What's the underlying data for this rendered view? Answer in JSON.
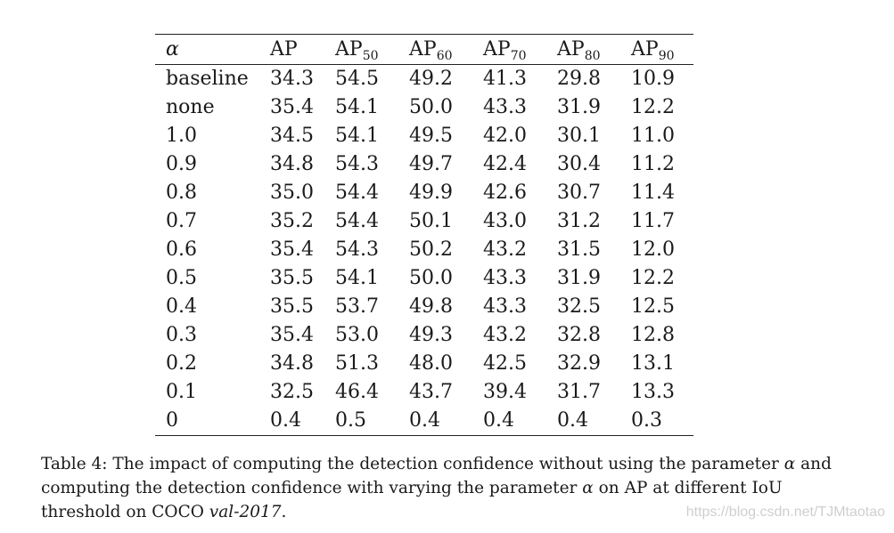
{
  "table": {
    "header": {
      "alpha": "α",
      "ap": "AP",
      "ap_base": "AP",
      "ap50_sub": "50",
      "ap60_sub": "60",
      "ap70_sub": "70",
      "ap80_sub": "80",
      "ap90_sub": "90"
    },
    "rows": [
      {
        "label": "baseline",
        "ap": "34.3",
        "ap50": "54.5",
        "ap60": "49.2",
        "ap70": "41.3",
        "ap80": "29.8",
        "ap90": "10.9"
      },
      {
        "label": "none",
        "ap": "35.4",
        "ap50": "54.1",
        "ap60": "50.0",
        "ap70": "43.3",
        "ap80": "31.9",
        "ap90": "12.2"
      },
      {
        "label": "1.0",
        "ap": "34.5",
        "ap50": "54.1",
        "ap60": "49.5",
        "ap70": "42.0",
        "ap80": "30.1",
        "ap90": "11.0"
      },
      {
        "label": "0.9",
        "ap": "34.8",
        "ap50": "54.3",
        "ap60": "49.7",
        "ap70": "42.4",
        "ap80": "30.4",
        "ap90": "11.2"
      },
      {
        "label": "0.8",
        "ap": "35.0",
        "ap50": "54.4",
        "ap60": "49.9",
        "ap70": "42.6",
        "ap80": "30.7",
        "ap90": "11.4"
      },
      {
        "label": "0.7",
        "ap": "35.2",
        "ap50": "54.4",
        "ap60": "50.1",
        "ap70": "43.0",
        "ap80": "31.2",
        "ap90": "11.7"
      },
      {
        "label": "0.6",
        "ap": "35.4",
        "ap50": "54.3",
        "ap60": "50.2",
        "ap70": "43.2",
        "ap80": "31.5",
        "ap90": "12.0"
      },
      {
        "label": "0.5",
        "ap": "35.5",
        "ap50": "54.1",
        "ap60": "50.0",
        "ap70": "43.3",
        "ap80": "31.9",
        "ap90": "12.2"
      },
      {
        "label": "0.4",
        "ap": "35.5",
        "ap50": "53.7",
        "ap60": "49.8",
        "ap70": "43.3",
        "ap80": "32.5",
        "ap90": "12.5"
      },
      {
        "label": "0.3",
        "ap": "35.4",
        "ap50": "53.0",
        "ap60": "49.3",
        "ap70": "43.2",
        "ap80": "32.8",
        "ap90": "12.8"
      },
      {
        "label": "0.2",
        "ap": "34.8",
        "ap50": "51.3",
        "ap60": "48.0",
        "ap70": "42.5",
        "ap80": "32.9",
        "ap90": "13.1"
      },
      {
        "label": "0.1",
        "ap": "32.5",
        "ap50": "46.4",
        "ap60": "43.7",
        "ap70": "39.4",
        "ap80": "31.7",
        "ap90": "13.3"
      },
      {
        "label": "0",
        "ap": "0.4",
        "ap50": "0.5",
        "ap60": "0.4",
        "ap70": "0.4",
        "ap80": "0.4",
        "ap90": "0.3"
      }
    ]
  },
  "caption": {
    "prefix": "Table 4: The impact of computing the detection confidence without using the parameter ",
    "alpha1": "α",
    "mid": " and computing the detection confidence with varying the parameter ",
    "alpha2": "α",
    "suffix": " on AP at different IoU threshold on COCO ",
    "dataset": "val-2017",
    "end": "."
  },
  "watermark": "https://blog.csdn.net/TJMtaotao"
}
